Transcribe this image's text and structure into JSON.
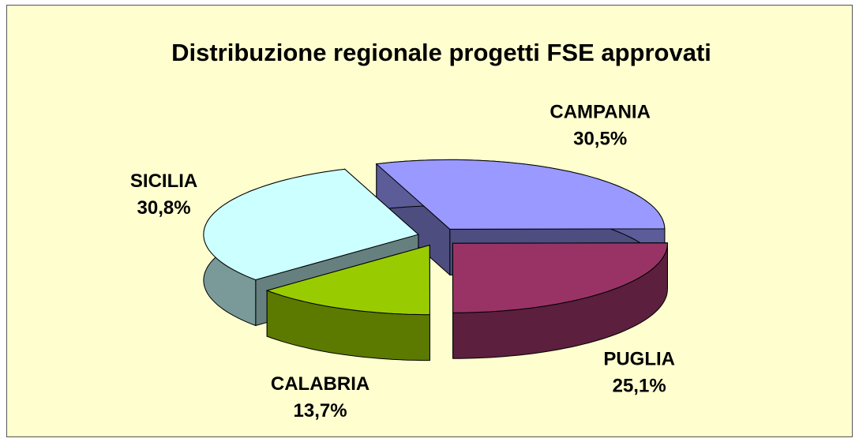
{
  "chart_data": {
    "type": "pie",
    "title": "Distribuzione regionale progetti FSE approvati",
    "categories": [
      "CAMPANIA",
      "PUGLIA",
      "CALABRIA",
      "SICILIA"
    ],
    "values": [
      30.5,
      25.1,
      13.7,
      30.8
    ],
    "value_labels": [
      "30,5%",
      "25,1%",
      "13,7%",
      "30,8%"
    ],
    "colors": [
      "#9999ff",
      "#993366",
      "#99cc00",
      "#ccffff"
    ]
  }
}
